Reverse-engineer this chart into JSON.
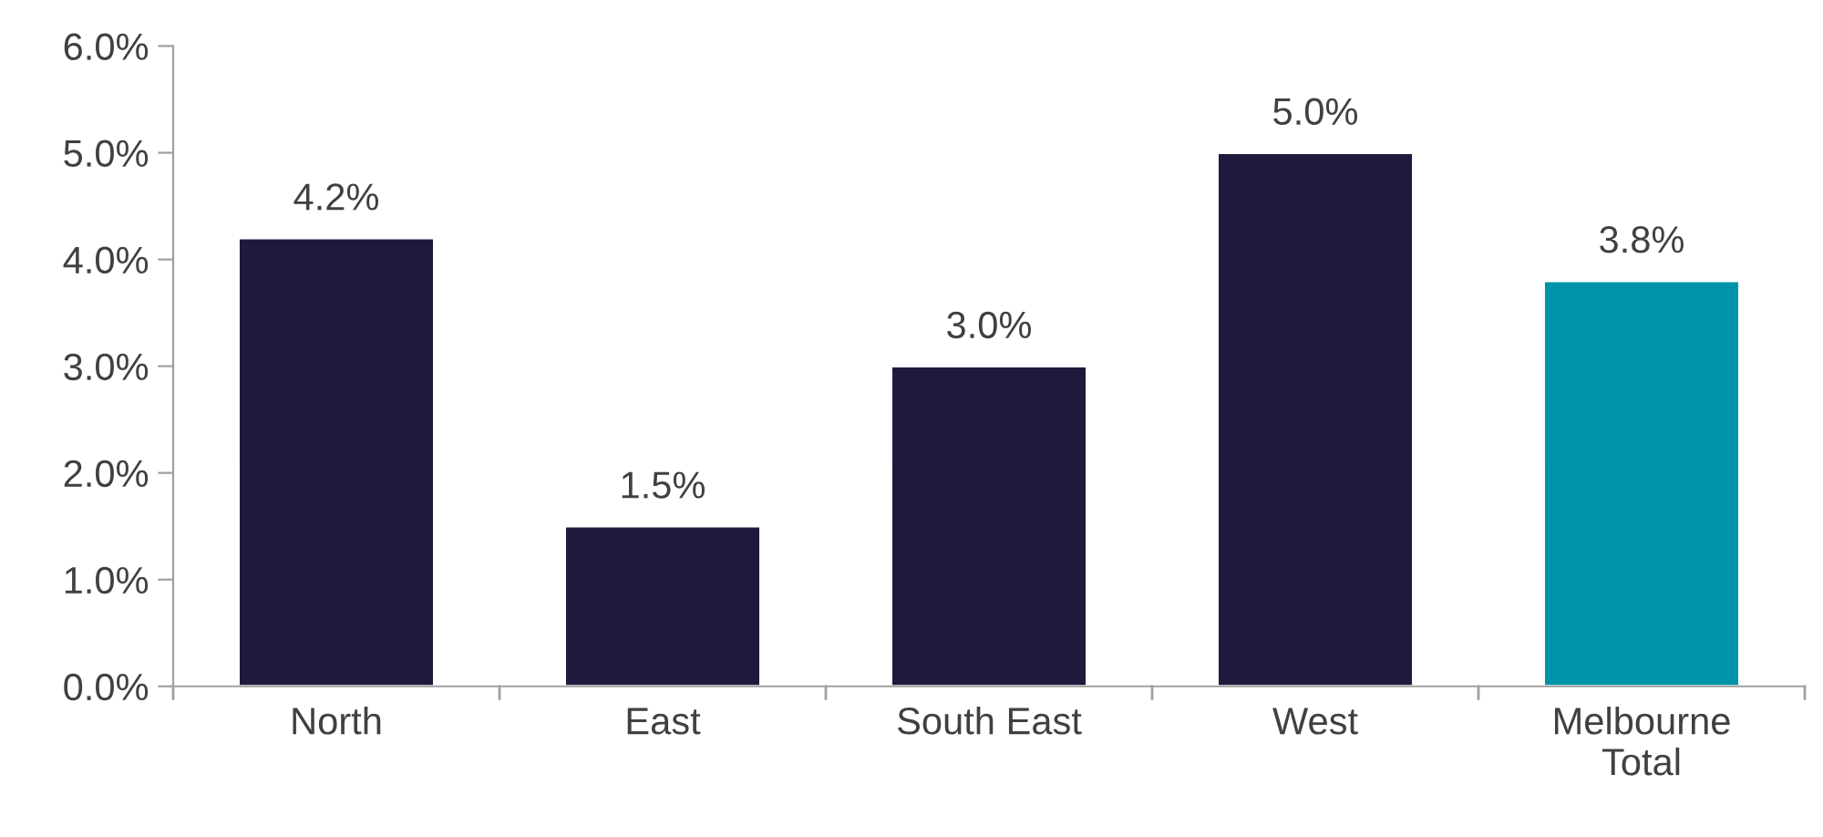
{
  "chart_data": {
    "type": "bar",
    "categories": [
      "North",
      "East",
      "South East",
      "West",
      "Melbourne\nTotal"
    ],
    "values": [
      4.2,
      1.5,
      3.0,
      5.0,
      3.8
    ],
    "colors": [
      "#1e1a3e",
      "#1e1a3e",
      "#1e1a3e",
      "#1e1a3e",
      "#0094a8"
    ],
    "value_labels": [
      "4.2%",
      "1.5%",
      "3.0%",
      "5.0%",
      "3.8%"
    ],
    "ylim": [
      0,
      6
    ],
    "yticks": [
      {
        "value": 0,
        "label": "0.0%"
      },
      {
        "value": 1,
        "label": "1.0%"
      },
      {
        "value": 2,
        "label": "2.0%"
      },
      {
        "value": 3,
        "label": "3.0%"
      },
      {
        "value": 4,
        "label": "4.0%"
      },
      {
        "value": 5,
        "label": "5.0%"
      },
      {
        "value": 6,
        "label": "6.0%"
      }
    ],
    "grid": false,
    "legend": false
  }
}
